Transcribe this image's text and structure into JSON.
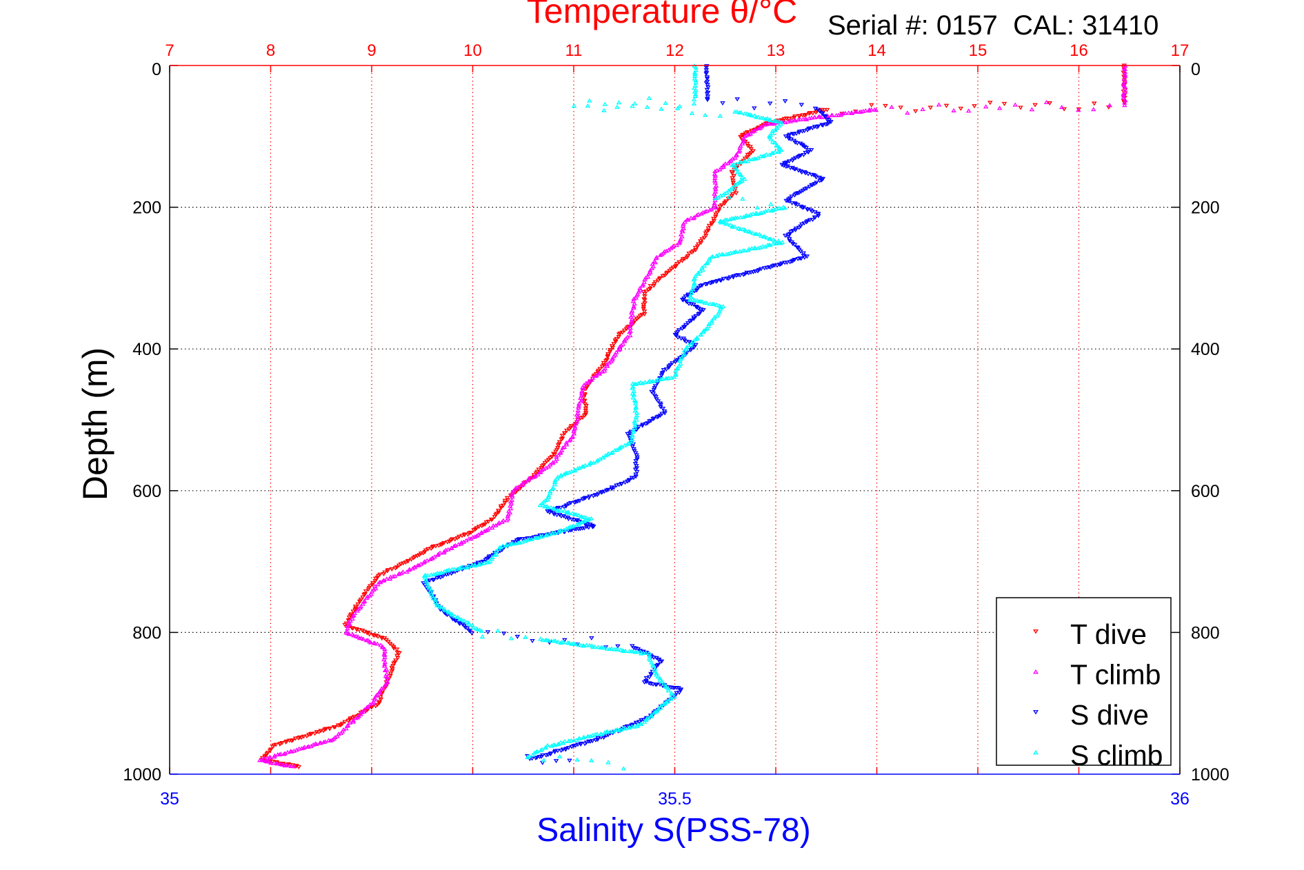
{
  "chart_data": {
    "type": "scatter",
    "title": "Temperature θ/°C",
    "subtitle": "Serial #: 0157  CAL: 31410",
    "xlabel_top": "Temperature θ/°C",
    "xlabel_bottom": "Salinity S(PSS-78)",
    "ylabel": "Depth (m)",
    "temperature_axis": {
      "range": [
        7,
        17
      ],
      "ticks": [
        "7",
        "8",
        "9",
        "10",
        "11",
        "12",
        "13",
        "14",
        "15",
        "16",
        "17"
      ],
      "color": "#ff0000"
    },
    "salinity_axis": {
      "range": [
        35,
        36
      ],
      "ticks": [
        "35",
        "35.5",
        "36"
      ],
      "tick_values": [
        35,
        35.5,
        36
      ],
      "color": "#0000ff"
    },
    "depth_axis": {
      "range": [
        0,
        1000
      ],
      "reversed": true,
      "ticks": [
        "0",
        "200",
        "400",
        "600",
        "800",
        "1000"
      ],
      "tick_values": [
        0,
        200,
        400,
        600,
        800,
        1000
      ]
    },
    "grid": true,
    "legend": {
      "placement": "bottom-right",
      "entries": [
        "T dive",
        "T climb",
        "S dive",
        "S climb"
      ]
    },
    "series": [
      {
        "name": "T dive",
        "axis": "temperature",
        "marker": "triangle-down",
        "color": "#ff0000",
        "points": [
          [
            16.45,
            0
          ],
          [
            16.45,
            55
          ],
          [
            13.5,
            62
          ],
          [
            12.9,
            83
          ],
          [
            12.65,
            100
          ],
          [
            12.77,
            120
          ],
          [
            12.57,
            150
          ],
          [
            12.6,
            180
          ],
          [
            12.45,
            200
          ],
          [
            12.3,
            240
          ],
          [
            12.2,
            260
          ],
          [
            11.95,
            290
          ],
          [
            11.7,
            320
          ],
          [
            11.7,
            350
          ],
          [
            11.45,
            380
          ],
          [
            11.3,
            420
          ],
          [
            11.1,
            460
          ],
          [
            11.13,
            490
          ],
          [
            10.9,
            520
          ],
          [
            10.8,
            550
          ],
          [
            10.6,
            580
          ],
          [
            10.35,
            610
          ],
          [
            10.2,
            640
          ],
          [
            9.97,
            660
          ],
          [
            9.6,
            680
          ],
          [
            9.35,
            700
          ],
          [
            9.07,
            720
          ],
          [
            8.86,
            760
          ],
          [
            8.74,
            790
          ],
          [
            9.15,
            810
          ],
          [
            9.27,
            830
          ],
          [
            9.15,
            870
          ],
          [
            9.07,
            900
          ],
          [
            8.7,
            930
          ],
          [
            8.04,
            960
          ],
          [
            7.9,
            980
          ],
          [
            8.3,
            990
          ]
        ]
      },
      {
        "name": "T climb",
        "axis": "temperature",
        "marker": "triangle-up",
        "color": "#ff00ff",
        "points": [
          [
            16.45,
            0
          ],
          [
            16.45,
            55
          ],
          [
            14.0,
            62
          ],
          [
            12.9,
            83
          ],
          [
            12.7,
            100
          ],
          [
            12.6,
            130
          ],
          [
            12.4,
            150
          ],
          [
            12.4,
            200
          ],
          [
            12.1,
            220
          ],
          [
            12.05,
            250
          ],
          [
            11.83,
            270
          ],
          [
            11.6,
            330
          ],
          [
            11.55,
            380
          ],
          [
            11.3,
            430
          ],
          [
            11.1,
            450
          ],
          [
            11.0,
            520
          ],
          [
            10.8,
            560
          ],
          [
            10.4,
            600
          ],
          [
            10.35,
            640
          ],
          [
            9.8,
            680
          ],
          [
            9.4,
            710
          ],
          [
            9.07,
            730
          ],
          [
            8.8,
            780
          ],
          [
            8.74,
            800
          ],
          [
            9.12,
            820
          ],
          [
            9.15,
            870
          ],
          [
            9.0,
            900
          ],
          [
            8.63,
            950
          ],
          [
            7.9,
            980
          ],
          [
            8.25,
            990
          ]
        ]
      },
      {
        "name": "S dive",
        "axis": "salinity",
        "marker": "triangle-down",
        "color": "#0000ff",
        "points": [
          [
            35.532,
            0
          ],
          [
            35.532,
            50
          ],
          [
            35.64,
            60
          ],
          [
            35.655,
            80
          ],
          [
            35.61,
            100
          ],
          [
            35.635,
            120
          ],
          [
            35.606,
            140
          ],
          [
            35.647,
            160
          ],
          [
            35.61,
            190
          ],
          [
            35.643,
            210
          ],
          [
            35.61,
            240
          ],
          [
            35.63,
            270
          ],
          [
            35.58,
            290
          ],
          [
            35.528,
            310
          ],
          [
            35.507,
            330
          ],
          [
            35.528,
            345
          ],
          [
            35.5,
            380
          ],
          [
            35.52,
            395
          ],
          [
            35.49,
            430
          ],
          [
            35.478,
            460
          ],
          [
            35.49,
            490
          ],
          [
            35.454,
            520
          ],
          [
            35.462,
            550
          ],
          [
            35.462,
            580
          ],
          [
            35.433,
            600
          ],
          [
            35.375,
            630
          ],
          [
            35.42,
            650
          ],
          [
            35.343,
            670
          ],
          [
            35.31,
            700
          ],
          [
            35.252,
            730
          ],
          [
            35.27,
            770
          ],
          [
            35.3,
            800
          ],
          [
            35.39,
            810
          ],
          [
            35.458,
            820
          ],
          [
            35.487,
            840
          ],
          [
            35.47,
            870
          ],
          [
            35.507,
            880
          ],
          [
            35.475,
            920
          ],
          [
            35.425,
            950
          ],
          [
            35.355,
            980
          ],
          [
            35.41,
            990
          ]
        ]
      },
      {
        "name": "S climb",
        "axis": "salinity",
        "marker": "triangle-up",
        "color": "#00ffff",
        "points": [
          [
            35.52,
            0
          ],
          [
            35.52,
            50
          ],
          [
            35.4,
            57
          ],
          [
            35.56,
            65
          ],
          [
            35.606,
            80
          ],
          [
            35.593,
            100
          ],
          [
            35.606,
            120
          ],
          [
            35.557,
            140
          ],
          [
            35.569,
            160
          ],
          [
            35.54,
            190
          ],
          [
            35.61,
            200
          ],
          [
            35.544,
            220
          ],
          [
            35.606,
            250
          ],
          [
            35.536,
            270
          ],
          [
            35.52,
            300
          ],
          [
            35.515,
            330
          ],
          [
            35.548,
            340
          ],
          [
            35.532,
            370
          ],
          [
            35.511,
            400
          ],
          [
            35.499,
            440
          ],
          [
            35.458,
            450
          ],
          [
            35.462,
            490
          ],
          [
            35.458,
            530
          ],
          [
            35.42,
            560
          ],
          [
            35.384,
            580
          ],
          [
            35.375,
            610
          ],
          [
            35.367,
            620
          ],
          [
            35.417,
            640
          ],
          [
            35.38,
            660
          ],
          [
            35.326,
            680
          ],
          [
            35.318,
            700
          ],
          [
            35.252,
            720
          ],
          [
            35.264,
            760
          ],
          [
            35.31,
            800
          ],
          [
            35.367,
            810
          ],
          [
            35.474,
            830
          ],
          [
            35.482,
            860
          ],
          [
            35.499,
            890
          ],
          [
            35.466,
            930
          ],
          [
            35.375,
            960
          ],
          [
            35.355,
            975
          ],
          [
            35.466,
            990
          ]
        ]
      }
    ]
  }
}
